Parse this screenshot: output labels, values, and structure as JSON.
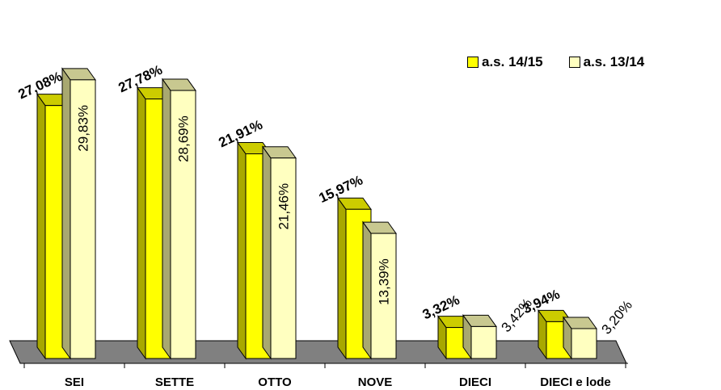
{
  "chart_data": {
    "type": "bar",
    "categories": [
      "SEI",
      "SETTE",
      "OTTO",
      "NOVE",
      "DIECI",
      "DIECI e lode"
    ],
    "series": [
      {
        "name": "a.s. 14/15",
        "values": [
          27.08,
          27.78,
          21.91,
          15.97,
          3.32,
          3.94
        ],
        "labels": [
          "27,08%",
          "27,78%",
          "21,91%",
          "15,97%",
          "3,32%",
          "3,94%"
        ],
        "color": "#ffff00",
        "side_color": "#a8a800",
        "top_color": "#cccc00"
      },
      {
        "name": "a.s. 13/14",
        "values": [
          29.83,
          28.69,
          21.46,
          13.39,
          3.42,
          3.2
        ],
        "labels": [
          "29,83%",
          "28,69%",
          "21,46%",
          "13,39%",
          "3,42%",
          "3,20%"
        ],
        "color": "#ffffc0",
        "side_color": "#a8a870",
        "top_color": "#c8c890"
      }
    ],
    "ylim": [
      0,
      30
    ],
    "grid": false,
    "legend_position": "top-right",
    "floor_color": "#808080"
  }
}
